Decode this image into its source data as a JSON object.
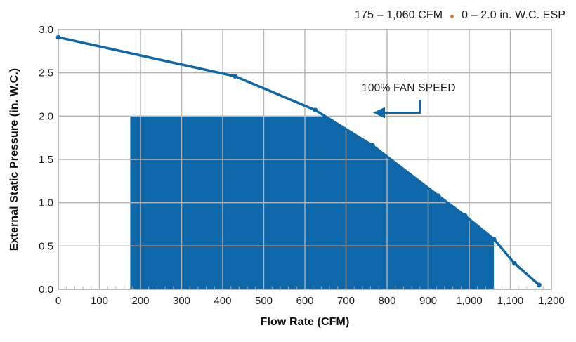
{
  "legend": {
    "flow_range": "175 – 1,060 CFM",
    "esp_range": "0 – 2.0 in. W.C. ESP"
  },
  "annotation": {
    "label": "100% FAN SPEED"
  },
  "chart_data": {
    "type": "line",
    "title": "",
    "xlabel": "Flow Rate (CFM)",
    "ylabel": "External Static Pressure (in. W.C.)",
    "xlim": [
      0,
      1200
    ],
    "ylim": [
      0.0,
      3.0
    ],
    "grid": true,
    "legend_position": "top-right",
    "x_tick_step": 100,
    "x_minor_tick_step": 20,
    "x_tick_labels": [
      "0",
      "100",
      "200",
      "300",
      "400",
      "500",
      "600",
      "700",
      "800",
      "900",
      "1,000",
      "1,100",
      "1,200"
    ],
    "y_tick_step": 0.5,
    "y_tick_labels": [
      "0.0",
      "0.5",
      "1.0",
      "1.5",
      "2.0",
      "2.5",
      "3.0"
    ],
    "series": [
      {
        "name": "100% FAN SPEED",
        "x": [
          0,
          430,
          625,
          765,
          925,
          990,
          1060,
          1110,
          1170
        ],
        "y": [
          2.91,
          2.46,
          2.07,
          1.66,
          1.08,
          0.85,
          0.58,
          0.3,
          0.05
        ]
      }
    ],
    "operating_envelope": {
      "cfm_min": 175,
      "cfm_max": 1060,
      "esp_min": 0.0,
      "esp_max": 2.0
    },
    "colors": {
      "line": "#0d67a8",
      "fill": "#0d67a8",
      "grid": "#b3b3b3",
      "text": "#1a1a1a",
      "legend_dot": "#e87722"
    }
  }
}
